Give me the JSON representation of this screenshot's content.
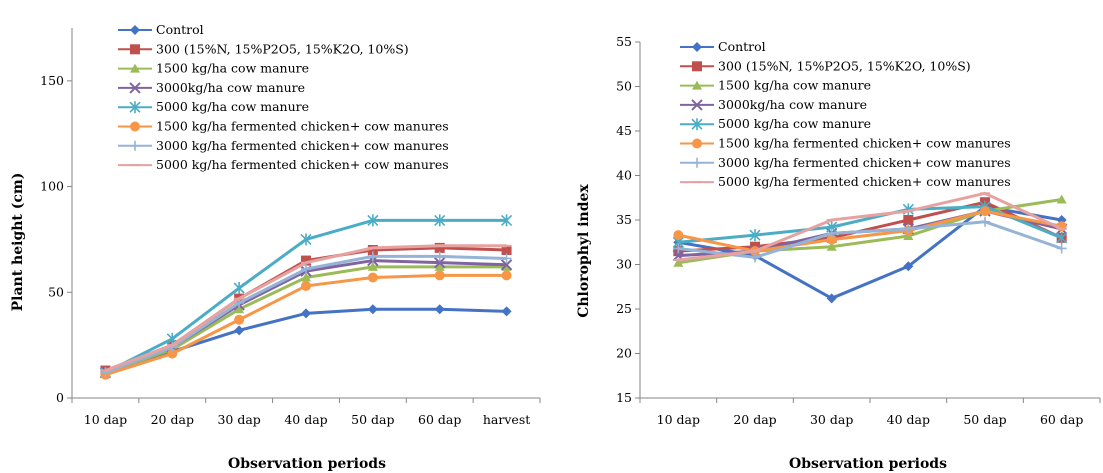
{
  "chart_data": [
    {
      "type": "line",
      "xlabel": "Observation periods",
      "ylabel": "Plant height (cm)",
      "ylim": [
        0,
        175
      ],
      "yticks": [
        0,
        50,
        100,
        150
      ],
      "categories": [
        "10 dap",
        "20 dap",
        "30 dap",
        "40 dap",
        "50 dap",
        "60 dap",
        "harvest"
      ],
      "grid": false,
      "legend_position": "top-right",
      "series": [
        {
          "name": "Control",
          "color": "#4472C4",
          "marker": "diamond",
          "values": [
            12,
            22,
            32,
            40,
            42,
            42,
            41
          ]
        },
        {
          "name": "300 (15%N, 15%P2O5, 15%K2O, 10%S)",
          "color": "#C0504D",
          "marker": "square",
          "values": [
            13,
            25,
            47,
            65,
            70,
            71,
            70
          ]
        },
        {
          "name": "1500 kg/ha cow manure",
          "color": "#9BBB59",
          "marker": "triangle",
          "values": [
            12,
            23,
            42,
            57,
            62,
            62,
            62
          ]
        },
        {
          "name": "3000kg/ha cow manure",
          "color": "#8064A2",
          "marker": "x",
          "values": [
            12,
            24,
            44,
            60,
            65,
            64,
            63
          ]
        },
        {
          "name": "5000 kg/ha cow manure",
          "color": "#4BACC6",
          "marker": "star",
          "values": [
            12,
            28,
            52,
            75,
            84,
            84,
            84
          ]
        },
        {
          "name": "1500 kg/ha fermented chicken+ cow manures",
          "color": "#F79646",
          "marker": "circle",
          "values": [
            11,
            21,
            37,
            53,
            57,
            58,
            58
          ]
        },
        {
          "name": "3000 kg/ha fermented chicken+ cow manures",
          "color": "#95B3D7",
          "marker": "plus",
          "values": [
            12,
            24,
            45,
            61,
            67,
            67,
            66
          ]
        },
        {
          "name": "5000 kg/ha fermented chicken+ cow manures",
          "color": "#E6A2A0",
          "marker": "dash",
          "values": [
            13,
            25,
            47,
            64,
            71,
            72,
            72
          ]
        }
      ]
    },
    {
      "type": "line",
      "xlabel": "Observation periods",
      "ylabel": "Chlorophyl index",
      "ylim": [
        15,
        55
      ],
      "yticks": [
        15,
        20,
        25,
        30,
        35,
        40,
        45,
        50,
        55
      ],
      "categories": [
        "10 dap",
        "20 dap",
        "30 dap",
        "40 dap",
        "50 dap",
        "60 dap"
      ],
      "grid": false,
      "legend_position": "top-right",
      "series": [
        {
          "name": "Control",
          "color": "#4472C4",
          "marker": "diamond",
          "values": [
            32.5,
            31.0,
            26.2,
            29.8,
            36.5,
            35.0
          ]
        },
        {
          "name": "300 (15%N, 15%P2O5, 15%K2O, 10%S)",
          "color": "#C0504D",
          "marker": "square",
          "values": [
            31.5,
            32.0,
            33.0,
            35.0,
            37.0,
            33.0
          ]
        },
        {
          "name": "1500 kg/ha cow manure",
          "color": "#9BBB59",
          "marker": "triangle",
          "values": [
            30.2,
            31.5,
            32.0,
            33.2,
            36.0,
            37.3
          ]
        },
        {
          "name": "3000kg/ha cow manure",
          "color": "#8064A2",
          "marker": "x",
          "values": [
            31.0,
            31.5,
            33.5,
            34.0,
            36.0,
            34.0
          ]
        },
        {
          "name": "5000 kg/ha cow manure",
          "color": "#4BACC6",
          "marker": "star",
          "values": [
            32.5,
            33.3,
            34.2,
            36.2,
            36.5,
            33.0
          ]
        },
        {
          "name": "1500 kg/ha fermented chicken+ cow manures",
          "color": "#F79646",
          "marker": "circle",
          "values": [
            33.3,
            31.5,
            32.8,
            33.8,
            36.0,
            34.3
          ]
        },
        {
          "name": "3000 kg/ha fermented chicken+ cow manures",
          "color": "#95B3D7",
          "marker": "plus",
          "values": [
            31.8,
            30.8,
            33.5,
            34.0,
            34.8,
            31.8
          ]
        },
        {
          "name": "5000 kg/ha fermented chicken+ cow manures",
          "color": "#E6A2A0",
          "marker": "dash",
          "values": [
            30.5,
            31.5,
            35.0,
            36.0,
            38.0,
            34.0
          ]
        }
      ]
    }
  ]
}
